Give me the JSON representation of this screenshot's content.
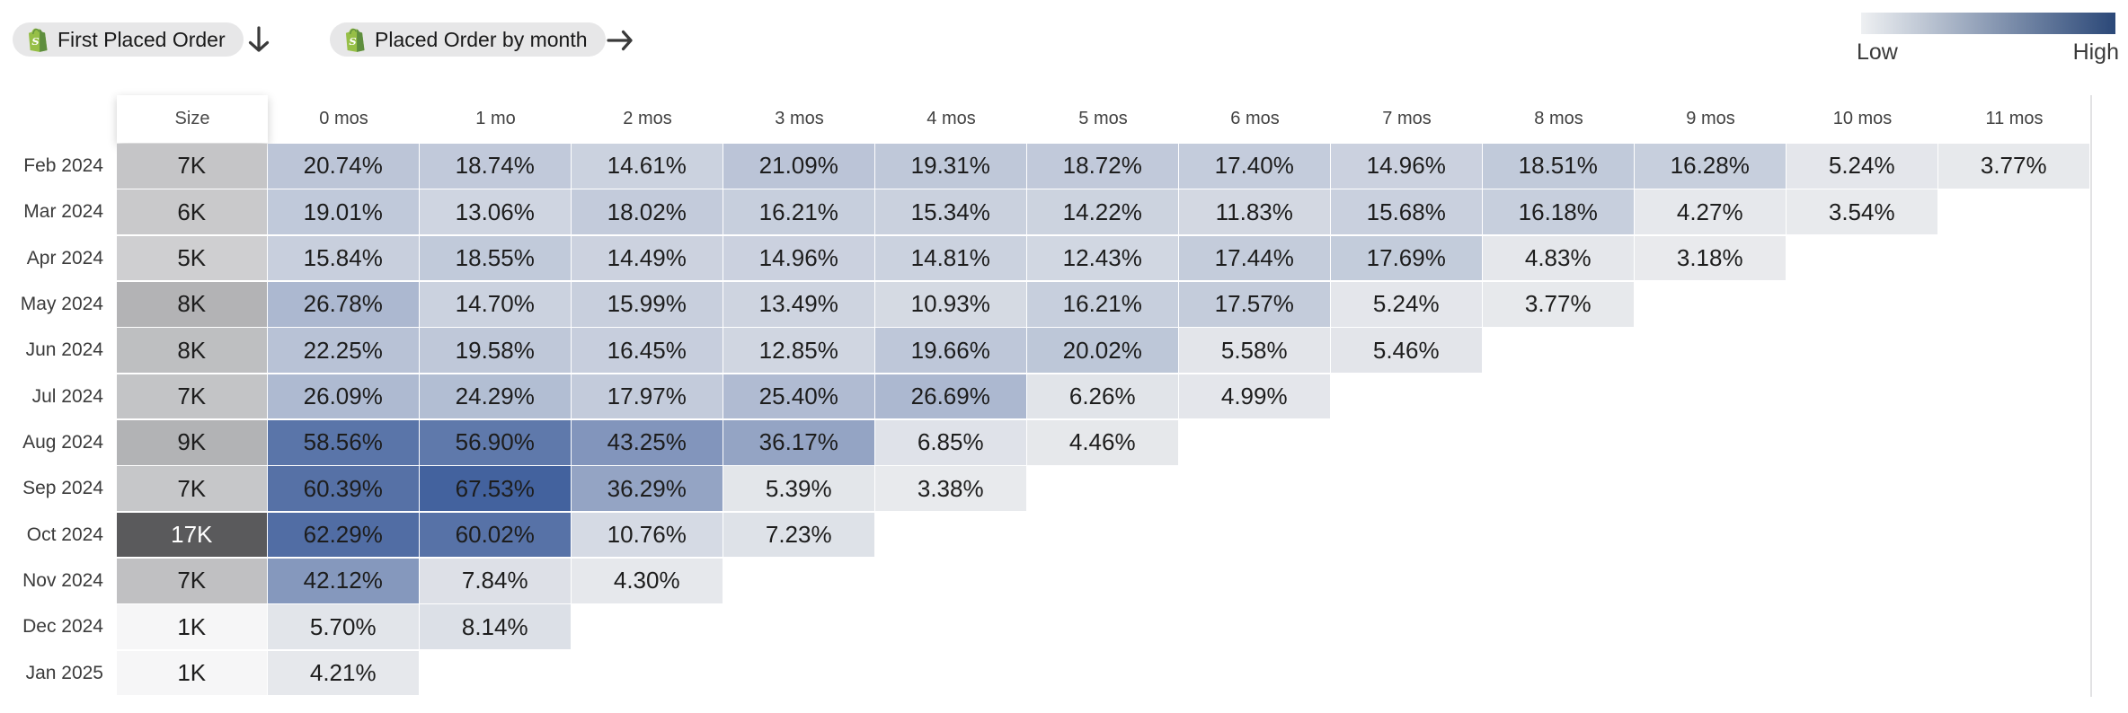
{
  "toolbar": {
    "first_event": {
      "label": "First Placed Order",
      "icon": "shopify-bag-icon"
    },
    "first_event_direction_icon": "down-arrow-icon",
    "second_event": {
      "label": "Placed Order by month",
      "icon": "shopify-bag-icon"
    },
    "second_event_direction_icon": "right-arrow-icon"
  },
  "legend": {
    "low_label": "Low",
    "high_label": "High",
    "gradient_start": "#eef0f2",
    "gradient_end": "#2b4878"
  },
  "chart_data": {
    "type": "heatmap",
    "columns": [
      "Size",
      "0 mos",
      "1 mo",
      "2 mos",
      "3 mos",
      "4 mos",
      "5 mos",
      "6 mos",
      "7 mos",
      "8 mos",
      "9 mos",
      "10 mos",
      "11 mos"
    ],
    "value_suffix": "%",
    "color_scale": {
      "min_value": 0,
      "max_value": 68,
      "min_color": "#f1f1f1",
      "max_color": "#42619d"
    },
    "cell_text_color": "#1d1d1d",
    "size_cell_light_text": "#ffffff",
    "rows": [
      {
        "cohort": "Feb 2024",
        "size": "7K",
        "size_color": "#c5c5c7",
        "values": [
          "20.74",
          "18.74",
          "14.61",
          "21.09",
          "19.31",
          "18.72",
          "17.40",
          "14.96",
          "18.51",
          "16.28",
          "5.24",
          "3.77"
        ]
      },
      {
        "cohort": "Mar 2024",
        "size": "6K",
        "size_color": "#c9c9cb",
        "values": [
          "19.01",
          "13.06",
          "18.02",
          "16.21",
          "15.34",
          "14.22",
          "11.83",
          "15.68",
          "16.18",
          "4.27",
          "3.54"
        ]
      },
      {
        "cohort": "Apr 2024",
        "size": "5K",
        "size_color": "#cfcfd1",
        "values": [
          "15.84",
          "18.55",
          "14.49",
          "14.96",
          "14.81",
          "12.43",
          "17.44",
          "17.69",
          "4.83",
          "3.18"
        ]
      },
      {
        "cohort": "May 2024",
        "size": "8K",
        "size_color": "#b3b3b5",
        "values": [
          "26.78",
          "14.70",
          "15.99",
          "13.49",
          "10.93",
          "16.21",
          "17.57",
          "5.24",
          "3.77"
        ]
      },
      {
        "cohort": "Jun 2024",
        "size": "8K",
        "size_color": "#bebfc1",
        "values": [
          "22.25",
          "19.58",
          "16.45",
          "12.85",
          "19.66",
          "20.02",
          "5.58",
          "5.46"
        ]
      },
      {
        "cohort": "Jul 2024",
        "size": "7K",
        "size_color": "#c3c4c6",
        "values": [
          "26.09",
          "24.29",
          "17.97",
          "25.40",
          "26.69",
          "6.26",
          "4.99"
        ]
      },
      {
        "cohort": "Aug 2024",
        "size": "9K",
        "size_color": "#b2b3b5",
        "values": [
          "58.56",
          "56.90",
          "43.25",
          "36.17",
          "6.85",
          "4.46"
        ]
      },
      {
        "cohort": "Sep 2024",
        "size": "7K",
        "size_color": "#c6c7c9",
        "values": [
          "60.39",
          "67.53",
          "36.29",
          "5.39",
          "3.38"
        ]
      },
      {
        "cohort": "Oct 2024",
        "size": "17K",
        "size_color": "#5a5a5c",
        "values": [
          "62.29",
          "60.02",
          "10.76",
          "7.23"
        ]
      },
      {
        "cohort": "Nov 2024",
        "size": "7K",
        "size_color": "#c0c0c2",
        "values": [
          "42.12",
          "7.84",
          "4.30"
        ]
      },
      {
        "cohort": "Dec 2024",
        "size": "1K",
        "size_color": "#f6f6f7",
        "values": [
          "5.70",
          "8.14"
        ]
      },
      {
        "cohort": "Jan 2025",
        "size": "1K",
        "size_color": "#f6f6f7",
        "values": [
          "4.21"
        ]
      }
    ]
  }
}
